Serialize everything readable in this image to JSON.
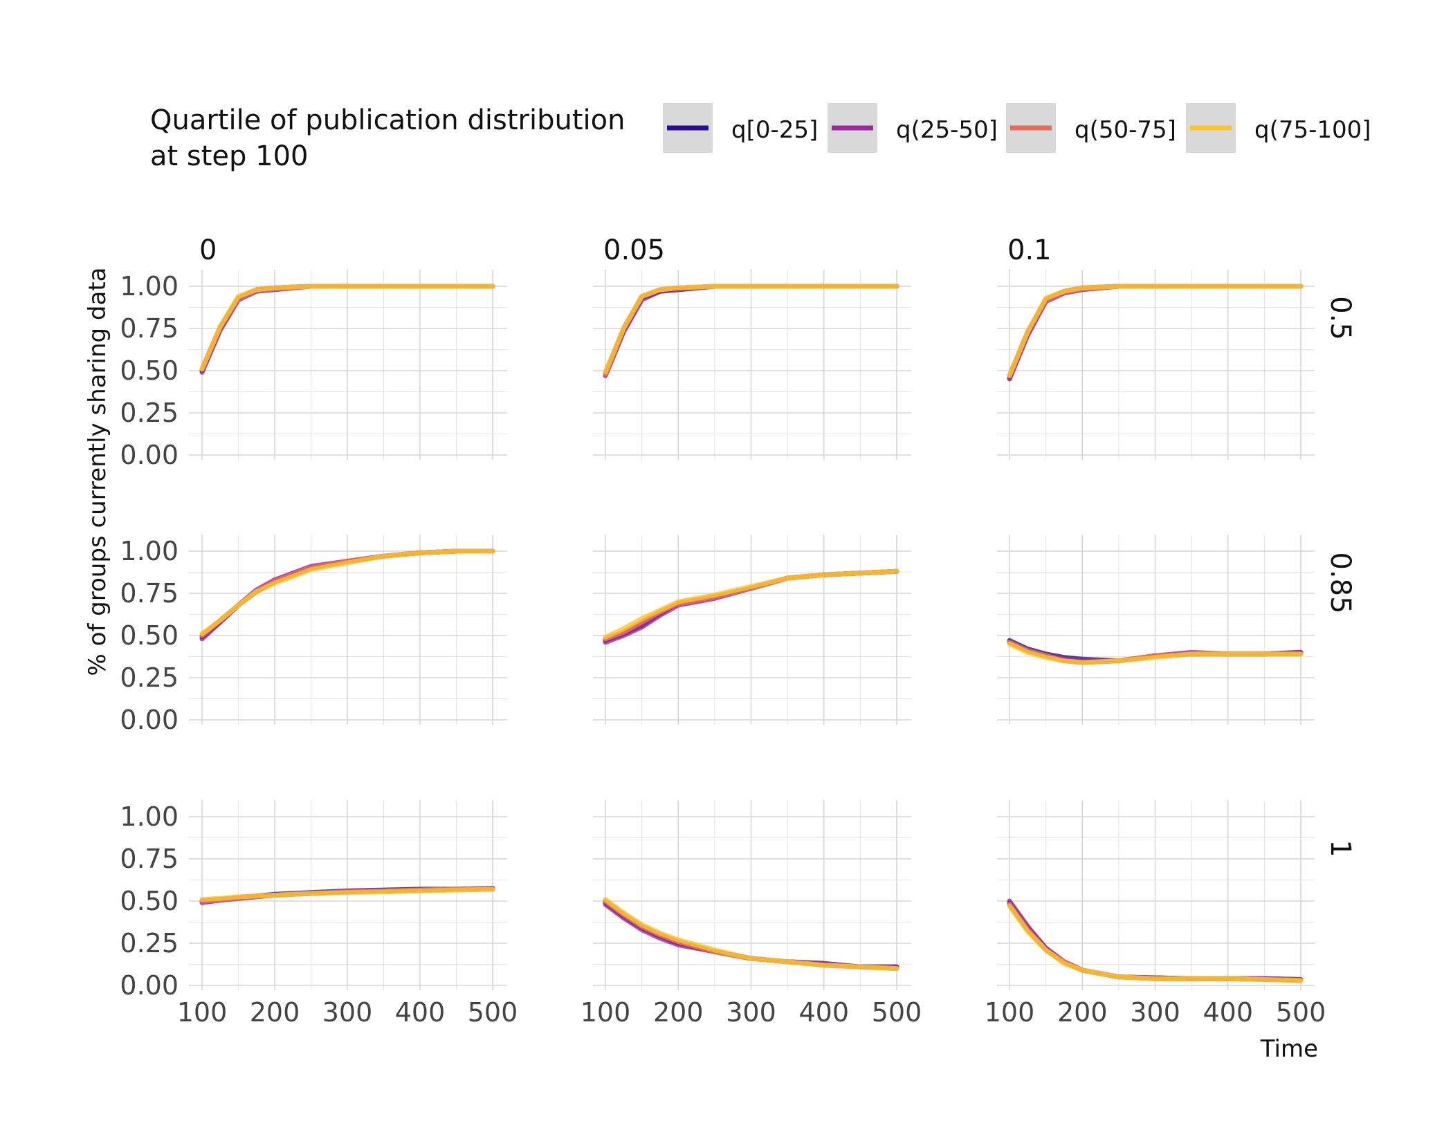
{
  "chart_data": {
    "type": "line",
    "legend": {
      "title_lines": [
        "Quartile of publication distribution",
        " at step 100"
      ],
      "position": "top",
      "entries": [
        {
          "label": "q[0-25]",
          "color": "#2b0c8f"
        },
        {
          "label": "q(25-50]",
          "color": "#9c2a9c"
        },
        {
          "label": "q(50-75]",
          "color": "#e56b5a"
        },
        {
          "label": "q(75-100]",
          "color": "#f7c52a"
        }
      ]
    },
    "ylabel": "% of groups currently sharing data",
    "xlabel": "Time",
    "xlim": [
      100,
      500
    ],
    "ylim": [
      0,
      1
    ],
    "x_ticks": [
      "100",
      "200",
      "300",
      "400",
      "500"
    ],
    "y_ticks": [
      "0.00",
      "0.25",
      "0.50",
      "0.75",
      "1.00"
    ],
    "col_labels": [
      "0",
      "0.05",
      "0.1"
    ],
    "row_labels": [
      "0.5",
      "0.85",
      "1"
    ],
    "grid": true,
    "x": [
      100,
      125,
      150,
      175,
      200,
      250,
      300,
      350,
      400,
      450,
      500
    ],
    "panels": [
      {
        "row": 0,
        "col": 0,
        "series": [
          {
            "values": [
              0.5,
              0.75,
              0.93,
              0.98,
              0.99,
              1.0,
              1.0,
              1.0,
              1.0,
              1.0,
              1.0
            ]
          },
          {
            "values": [
              0.49,
              0.74,
              0.92,
              0.97,
              0.98,
              1.0,
              1.0,
              1.0,
              1.0,
              1.0,
              1.0
            ]
          },
          {
            "values": [
              0.51,
              0.76,
              0.93,
              0.98,
              0.99,
              1.0,
              1.0,
              1.0,
              1.0,
              1.0,
              1.0
            ]
          },
          {
            "values": [
              0.51,
              0.76,
              0.94,
              0.98,
              0.99,
              1.0,
              1.0,
              1.0,
              1.0,
              1.0,
              1.0
            ]
          }
        ]
      },
      {
        "row": 0,
        "col": 1,
        "series": [
          {
            "values": [
              0.48,
              0.74,
              0.93,
              0.97,
              0.98,
              1.0,
              1.0,
              1.0,
              1.0,
              1.0,
              1.0
            ]
          },
          {
            "values": [
              0.47,
              0.73,
              0.92,
              0.97,
              0.98,
              1.0,
              1.0,
              1.0,
              1.0,
              1.0,
              1.0
            ]
          },
          {
            "values": [
              0.48,
              0.75,
              0.94,
              0.98,
              0.99,
              1.0,
              1.0,
              1.0,
              1.0,
              1.0,
              1.0
            ]
          },
          {
            "values": [
              0.49,
              0.75,
              0.94,
              0.98,
              0.99,
              1.0,
              1.0,
              1.0,
              1.0,
              1.0,
              1.0
            ]
          }
        ]
      },
      {
        "row": 0,
        "col": 2,
        "series": [
          {
            "values": [
              0.46,
              0.72,
              0.92,
              0.97,
              0.99,
              1.0,
              1.0,
              1.0,
              1.0,
              1.0,
              1.0
            ]
          },
          {
            "values": [
              0.45,
              0.71,
              0.91,
              0.96,
              0.98,
              1.0,
              1.0,
              1.0,
              1.0,
              1.0,
              1.0
            ]
          },
          {
            "values": [
              0.47,
              0.73,
              0.92,
              0.97,
              0.99,
              1.0,
              1.0,
              1.0,
              1.0,
              1.0,
              1.0
            ]
          },
          {
            "values": [
              0.47,
              0.73,
              0.93,
              0.97,
              0.99,
              1.0,
              1.0,
              1.0,
              1.0,
              1.0,
              1.0
            ]
          }
        ]
      },
      {
        "row": 1,
        "col": 0,
        "series": [
          {
            "values": [
              0.49,
              0.58,
              0.68,
              0.76,
              0.82,
              0.9,
              0.94,
              0.97,
              0.99,
              1.0,
              1.0
            ]
          },
          {
            "values": [
              0.48,
              0.58,
              0.68,
              0.77,
              0.83,
              0.91,
              0.94,
              0.97,
              0.99,
              1.0,
              1.0
            ]
          },
          {
            "values": [
              0.5,
              0.59,
              0.68,
              0.76,
              0.82,
              0.9,
              0.94,
              0.97,
              0.99,
              1.0,
              1.0
            ]
          },
          {
            "values": [
              0.51,
              0.59,
              0.68,
              0.76,
              0.81,
              0.89,
              0.93,
              0.97,
              0.99,
              1.0,
              1.0
            ]
          }
        ]
      },
      {
        "row": 1,
        "col": 1,
        "series": [
          {
            "values": [
              0.47,
              0.51,
              0.56,
              0.63,
              0.69,
              0.73,
              0.78,
              0.84,
              0.86,
              0.87,
              0.88
            ]
          },
          {
            "values": [
              0.46,
              0.5,
              0.55,
              0.62,
              0.68,
              0.72,
              0.78,
              0.84,
              0.86,
              0.87,
              0.88
            ]
          },
          {
            "values": [
              0.48,
              0.52,
              0.58,
              0.64,
              0.69,
              0.73,
              0.78,
              0.84,
              0.86,
              0.87,
              0.88
            ]
          },
          {
            "values": [
              0.49,
              0.54,
              0.6,
              0.65,
              0.7,
              0.74,
              0.79,
              0.84,
              0.86,
              0.87,
              0.88
            ]
          }
        ]
      },
      {
        "row": 1,
        "col": 2,
        "series": [
          {
            "values": [
              0.47,
              0.42,
              0.39,
              0.37,
              0.36,
              0.35,
              0.38,
              0.39,
              0.39,
              0.39,
              0.4
            ]
          },
          {
            "values": [
              0.46,
              0.41,
              0.38,
              0.36,
              0.35,
              0.35,
              0.38,
              0.4,
              0.39,
              0.39,
              0.4
            ]
          },
          {
            "values": [
              0.46,
              0.41,
              0.38,
              0.35,
              0.34,
              0.35,
              0.38,
              0.39,
              0.39,
              0.39,
              0.39
            ]
          },
          {
            "values": [
              0.45,
              0.4,
              0.37,
              0.35,
              0.34,
              0.35,
              0.37,
              0.39,
              0.39,
              0.39,
              0.39
            ]
          }
        ]
      },
      {
        "row": 2,
        "col": 0,
        "series": [
          {
            "values": [
              0.5,
              0.51,
              0.52,
              0.53,
              0.54,
              0.55,
              0.56,
              0.565,
              0.57,
              0.57,
              0.575
            ]
          },
          {
            "values": [
              0.49,
              0.505,
              0.515,
              0.525,
              0.535,
              0.545,
              0.555,
              0.56,
              0.565,
              0.57,
              0.575
            ]
          },
          {
            "values": [
              0.5,
              0.51,
              0.52,
              0.53,
              0.535,
              0.545,
              0.555,
              0.56,
              0.565,
              0.57,
              0.57
            ]
          },
          {
            "values": [
              0.51,
              0.515,
              0.525,
              0.53,
              0.535,
              0.545,
              0.55,
              0.555,
              0.56,
              0.565,
              0.57
            ]
          }
        ]
      },
      {
        "row": 2,
        "col": 1,
        "series": [
          {
            "values": [
              0.49,
              0.41,
              0.34,
              0.29,
              0.25,
              0.2,
              0.16,
              0.14,
              0.13,
              0.11,
              0.11
            ]
          },
          {
            "values": [
              0.48,
              0.4,
              0.33,
              0.28,
              0.24,
              0.2,
              0.16,
              0.14,
              0.13,
              0.11,
              0.11
            ]
          },
          {
            "values": [
              0.5,
              0.42,
              0.35,
              0.3,
              0.26,
              0.2,
              0.16,
              0.14,
              0.12,
              0.11,
              0.1
            ]
          },
          {
            "values": [
              0.51,
              0.43,
              0.36,
              0.31,
              0.27,
              0.21,
              0.16,
              0.14,
              0.12,
              0.11,
              0.1
            ]
          }
        ]
      },
      {
        "row": 2,
        "col": 2,
        "series": [
          {
            "values": [
              0.49,
              0.34,
              0.22,
              0.14,
              0.09,
              0.05,
              0.045,
              0.04,
              0.04,
              0.04,
              0.035
            ]
          },
          {
            "values": [
              0.5,
              0.35,
              0.22,
              0.14,
              0.09,
              0.05,
              0.045,
              0.04,
              0.04,
              0.04,
              0.035
            ]
          },
          {
            "values": [
              0.48,
              0.33,
              0.21,
              0.14,
              0.09,
              0.05,
              0.04,
              0.04,
              0.04,
              0.035,
              0.03
            ]
          },
          {
            "values": [
              0.47,
              0.32,
              0.21,
              0.13,
              0.09,
              0.05,
              0.04,
              0.04,
              0.04,
              0.035,
              0.03
            ]
          }
        ]
      }
    ]
  }
}
